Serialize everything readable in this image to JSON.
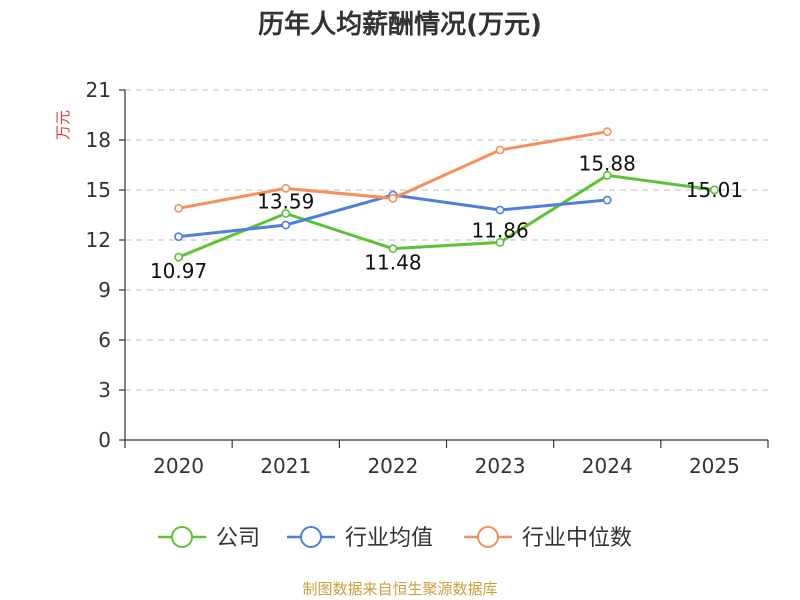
{
  "chart_data": {
    "type": "line",
    "title": "历年人均薪酬情况(万元)",
    "ylabel": "万元",
    "xlabel": "",
    "categories": [
      "2020",
      "2021",
      "2022",
      "2023",
      "2024",
      "2025"
    ],
    "ylim": [
      0,
      21
    ],
    "yticks": [
      0,
      3,
      6,
      9,
      12,
      15,
      18,
      21
    ],
    "grid": true,
    "legend_position": "bottom",
    "series": [
      {
        "name": "公司",
        "color": "#5cc433",
        "values": [
          10.97,
          13.59,
          11.48,
          11.86,
          15.88,
          15.01
        ],
        "labels": [
          "10.97",
          "13.59",
          "11.48",
          "11.86",
          "15.88",
          "15.01"
        ]
      },
      {
        "name": "行业均值",
        "color": "#4f7fdc",
        "values": [
          12.2,
          12.9,
          14.7,
          13.8,
          14.4,
          null
        ]
      },
      {
        "name": "行业中位数",
        "color": "#f6905a",
        "values": [
          13.9,
          15.1,
          14.5,
          17.4,
          18.5,
          null
        ]
      }
    ]
  },
  "source": "制图数据来自恒生聚源数据库",
  "colors": {
    "source_text": "#c8a23c",
    "ylabel_text": "#e03b3b",
    "axis": "#333333",
    "grid": "#cccccc"
  }
}
